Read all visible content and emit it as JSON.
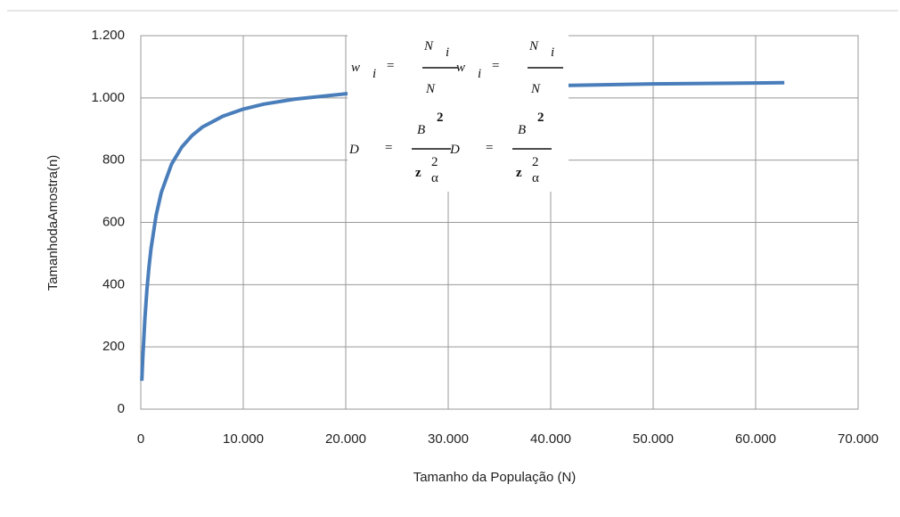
{
  "chart_data": {
    "type": "line",
    "ylabel": "TamanhodaAmostra(n)",
    "xlabel": "Tamanho  da População  (N)",
    "x": [
      100,
      200,
      400,
      600,
      800,
      1000,
      1500,
      2000,
      3000,
      4000,
      5000,
      6000,
      8000,
      10000,
      12000,
      15000,
      20000,
      25000,
      30000,
      40000,
      50000,
      60000,
      62800
    ],
    "series": [
      {
        "color": "#4a7ebb",
        "values": [
          91,
          168,
          291,
          384,
          457,
          516,
          624,
          696,
          787,
          842,
          879,
          906,
          941,
          964,
          980,
          996,
          1013,
          1023,
          1030,
          1039,
          1045,
          1048,
          1049
        ]
      }
    ],
    "xlim": [
      0,
      70000
    ],
    "xticks": [
      0,
      {
        "value": 10000,
        "label": "10.000"
      },
      {
        "value": 20000,
        "label": "20.000"
      },
      {
        "value": 30000,
        "label": "30.000"
      },
      {
        "value": 40000,
        "label": "40.000"
      },
      {
        "value": 50000,
        "label": "50.000"
      },
      {
        "value": 60000,
        "label": "60.000"
      },
      {
        "value": 70000,
        "label": "70.000"
      }
    ],
    "ylim": [
      0,
      1200
    ],
    "yticks": [
      0,
      200,
      400,
      600,
      800,
      {
        "value": 1000,
        "label": "1.000"
      },
      {
        "value": 1200,
        "label": "1.200"
      }
    ],
    "grid": true,
    "annotations": [
      {
        "lhs": "w",
        "lhs_sub": "i",
        "relation": "=",
        "numerator": "N",
        "numerator_sub": "i",
        "denominator": "N"
      },
      {
        "lhs": "w",
        "lhs_sub": "i",
        "relation": "=",
        "numerator": "N",
        "numerator_sub": "i",
        "denominator": "N"
      },
      {
        "lhs": "D",
        "relation": "=",
        "numerator": "B",
        "numerator_sup": "2",
        "denominator": "z",
        "denominator_sup": "2",
        "denominator_sub": "α"
      },
      {
        "lhs": "D",
        "relation": "=",
        "numerator": "B",
        "numerator_sup": "2",
        "denominator": "z",
        "denominator_sup": "2",
        "denominator_sub": "α"
      }
    ]
  }
}
